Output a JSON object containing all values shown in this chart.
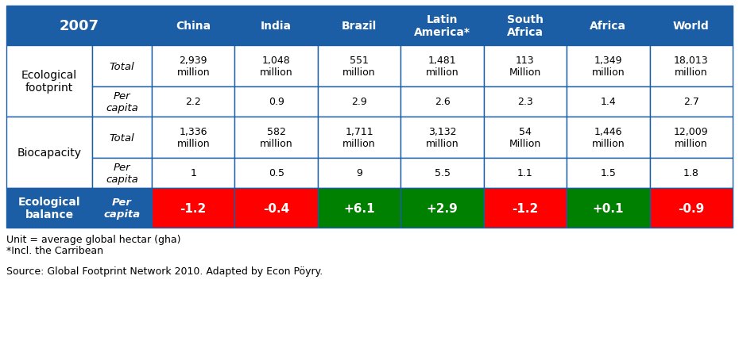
{
  "header_bg": "#1B5EA6",
  "header_text_color": "#FFFFFF",
  "cell_bg": "#FFFFFF",
  "border_color": "#1B5EA6",
  "balance_colors": [
    "#FF0000",
    "#FF0000",
    "#008000",
    "#008000",
    "#FF0000",
    "#008000",
    "#FF0000"
  ],
  "balance_values": [
    "-1.2",
    "-0.4",
    "+6.1",
    "+2.9",
    "-1.2",
    "+0.1",
    "-0.9"
  ],
  "columns": [
    "China",
    "India",
    "Brazil",
    "Latin\nAmerica*",
    "South\nAfrica",
    "Africa",
    "World"
  ],
  "eco_footprint_total": [
    "2,939\nmillion",
    "1,048\nmillion",
    "551\nmillion",
    "1,481\nmillion",
    "113\nMillion",
    "1,349\nmillion",
    "18,013\nmillion"
  ],
  "eco_footprint_percapita": [
    "2.2",
    "0.9",
    "2.9",
    "2.6",
    "2.3",
    "1.4",
    "2.7"
  ],
  "biocapacity_total": [
    "1,336\nmillion",
    "582\nmillion",
    "1,711\nmillion",
    "3,132\nmillion",
    "54\nMillion",
    "1,446\nmillion",
    "12,009\nmillion"
  ],
  "biocapacity_percapita": [
    "1",
    "0.5",
    "9",
    "5.5",
    "1.1",
    "1.5",
    "1.8"
  ],
  "note1": "Unit = average global hectar (gha)",
  "note2": "*Incl. the Carribean",
  "source": "Source: Global Footprint Network 2010. Adapted by Econ Pöyry."
}
